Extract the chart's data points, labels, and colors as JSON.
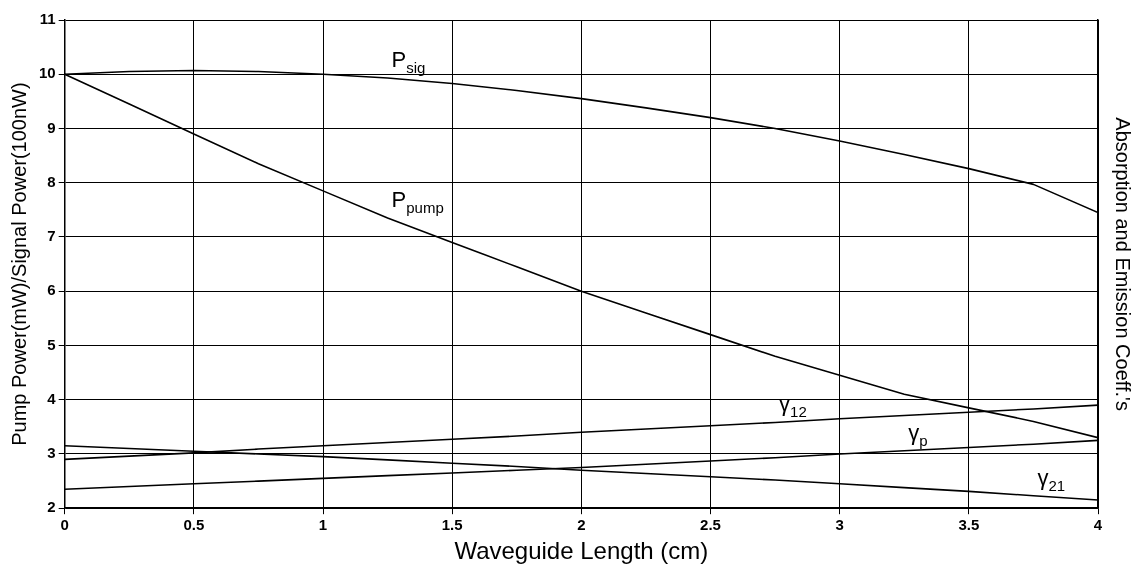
{
  "chart_data": {
    "type": "line",
    "xlabel": "Waveguide Length (cm)",
    "ylabel": "Pump Power(mW)/Signal Power(100nW)",
    "y2label": "Absorption and Emission Coeff.'s",
    "x": [
      0,
      0.25,
      0.5,
      0.75,
      1,
      1.25,
      1.5,
      1.75,
      2,
      2.25,
      2.5,
      2.75,
      3,
      3.25,
      3.5,
      3.75,
      4
    ],
    "series": [
      {
        "color": "#000000",
        "values": [
          10,
          10.05,
          10.07,
          10.05,
          10,
          9.93,
          9.83,
          9.7,
          9.55,
          9.38,
          9.2,
          9,
          8.77,
          8.52,
          8.26,
          7.97,
          7.45
        ]
      },
      {
        "color": "#000000",
        "values": [
          10,
          9.45,
          8.9,
          8.35,
          7.85,
          7.35,
          6.9,
          6.45,
          6,
          5.6,
          5.2,
          4.8,
          4.45,
          4.1,
          3.85,
          3.6,
          3.3
        ]
      },
      {
        "color": "#000000",
        "values": [
          2.9,
          2.96,
          3.02,
          3.09,
          3.15,
          3.21,
          3.27,
          3.33,
          3.4,
          3.46,
          3.52,
          3.58,
          3.65,
          3.71,
          3.77,
          3.83,
          3.9
        ]
      },
      {
        "color": "#000000",
        "values": [
          2.35,
          2.4,
          2.45,
          2.5,
          2.55,
          2.6,
          2.65,
          2.7,
          2.75,
          2.81,
          2.87,
          2.93,
          3,
          3.06,
          3.12,
          3.18,
          3.25
        ]
      },
      {
        "color": "#000000",
        "values": [
          3.15,
          3.1,
          3.05,
          3,
          2.95,
          2.89,
          2.83,
          2.77,
          2.7,
          2.64,
          2.58,
          2.52,
          2.45,
          2.38,
          2.31,
          2.23,
          2.15
        ]
      }
    ],
    "annotations": [
      {
        "text": "P$_{sig}$",
        "x": 1.25,
        "y": 9.93
      },
      {
        "text": "P$_{pump}$",
        "x": 1.25,
        "y": 7.35
      },
      {
        "text": "γ$_{12}$",
        "x": 2.75,
        "y": 3.58
      },
      {
        "text": "γ$_{p}$",
        "x": 3.25,
        "y": 3.06
      },
      {
        "text": "γ$_{21}$",
        "x": 3.75,
        "y": 2.23
      }
    ],
    "xlim": [
      0,
      4
    ],
    "xticks": [
      0,
      0.5,
      1,
      1.5,
      2,
      2.5,
      3,
      3.5,
      4
    ],
    "ylim": [
      2,
      11
    ],
    "yticks": [
      2,
      3,
      4,
      5,
      6,
      7,
      8,
      9,
      10,
      11
    ],
    "grid": true,
    "marker": "none",
    "line_style": "solid",
    "legend": false
  }
}
